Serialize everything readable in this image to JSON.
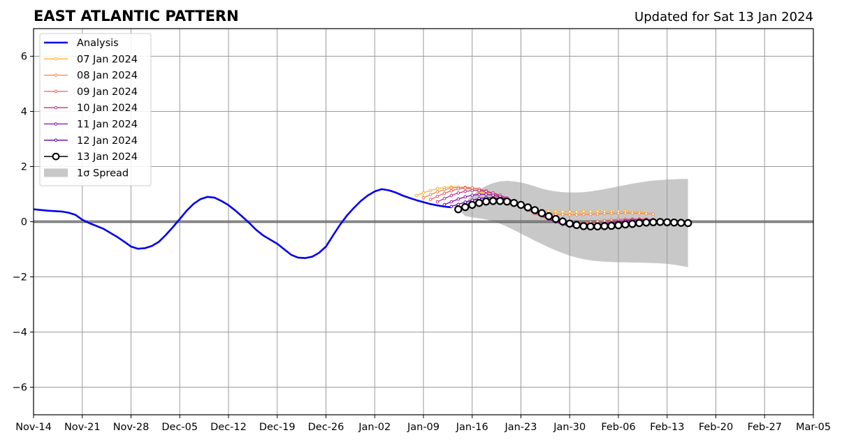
{
  "chart_data": {
    "type": "line",
    "title": "EAST ATLANTIC PATTERN",
    "subtitle": "Updated for Sat 13 Jan 2024",
    "x_axis": {
      "min_date": "2023-11-14",
      "max_date": "2024-03-05",
      "tick_dates": [
        "2023-11-14",
        "2023-11-21",
        "2023-11-28",
        "2023-12-05",
        "2023-12-12",
        "2023-12-19",
        "2023-12-26",
        "2024-01-02",
        "2024-01-09",
        "2024-01-16",
        "2024-01-23",
        "2024-01-30",
        "2024-02-06",
        "2024-02-13",
        "2024-02-20",
        "2024-02-27",
        "2024-03-05"
      ],
      "tick_labels": [
        "Nov-14",
        "Nov-21",
        "Nov-28",
        "Dec-05",
        "Dec-12",
        "Dec-19",
        "Dec-26",
        "Jan-02",
        "Jan-09",
        "Jan-16",
        "Jan-23",
        "Jan-30",
        "Feb-06",
        "Feb-13",
        "Feb-20",
        "Feb-27",
        "Mar-05"
      ]
    },
    "y_axis": {
      "ylim": [
        -7,
        7
      ],
      "ticks": [
        6,
        4,
        2,
        0,
        -2,
        -4,
        -6
      ],
      "tick_labels": [
        "6",
        "4",
        "2",
        "0",
        "−2",
        "−4",
        "−6"
      ]
    },
    "grid": true,
    "zero_line": true,
    "legend_placement": "upper-left",
    "analysis": {
      "name": "Analysis",
      "color": "#0000ee",
      "points": [
        [
          "2023-11-14",
          0.45
        ],
        [
          "2023-11-16",
          0.4
        ],
        [
          "2023-11-18",
          0.37
        ],
        [
          "2023-11-19",
          0.33
        ],
        [
          "2023-11-20",
          0.25
        ],
        [
          "2023-11-21",
          0.07
        ],
        [
          "2023-11-22",
          -0.05
        ],
        [
          "2023-11-24",
          -0.25
        ],
        [
          "2023-11-26",
          -0.55
        ],
        [
          "2023-11-27",
          -0.72
        ],
        [
          "2023-11-28",
          -0.9
        ],
        [
          "2023-11-29",
          -0.98
        ],
        [
          "2023-11-30",
          -0.96
        ],
        [
          "2023-12-01",
          -0.88
        ],
        [
          "2023-12-02",
          -0.73
        ],
        [
          "2023-12-03",
          -0.48
        ],
        [
          "2023-12-04",
          -0.2
        ],
        [
          "2023-12-05",
          0.1
        ],
        [
          "2023-12-06",
          0.4
        ],
        [
          "2023-12-07",
          0.65
        ],
        [
          "2023-12-08",
          0.82
        ],
        [
          "2023-12-09",
          0.9
        ],
        [
          "2023-12-10",
          0.87
        ],
        [
          "2023-12-11",
          0.75
        ],
        [
          "2023-12-12",
          0.6
        ],
        [
          "2023-12-13",
          0.4
        ],
        [
          "2023-12-14",
          0.18
        ],
        [
          "2023-12-15",
          -0.05
        ],
        [
          "2023-12-16",
          -0.3
        ],
        [
          "2023-12-17",
          -0.5
        ],
        [
          "2023-12-18",
          -0.65
        ],
        [
          "2023-12-19",
          -0.8
        ],
        [
          "2023-12-20",
          -1.0
        ],
        [
          "2023-12-21",
          -1.2
        ],
        [
          "2023-12-22",
          -1.3
        ],
        [
          "2023-12-23",
          -1.32
        ],
        [
          "2023-12-24",
          -1.27
        ],
        [
          "2023-12-25",
          -1.13
        ],
        [
          "2023-12-26",
          -0.9
        ],
        [
          "2023-12-27",
          -0.5
        ],
        [
          "2023-12-28",
          -0.12
        ],
        [
          "2023-12-29",
          0.22
        ],
        [
          "2023-12-30",
          0.5
        ],
        [
          "2023-12-31",
          0.75
        ],
        [
          "2024-01-01",
          0.95
        ],
        [
          "2024-01-02",
          1.1
        ],
        [
          "2024-01-03",
          1.18
        ],
        [
          "2024-01-04",
          1.14
        ],
        [
          "2024-01-05",
          1.06
        ],
        [
          "2024-01-06",
          0.95
        ],
        [
          "2024-01-07",
          0.86
        ],
        [
          "2024-01-08",
          0.78
        ],
        [
          "2024-01-09",
          0.71
        ],
        [
          "2024-01-10",
          0.64
        ],
        [
          "2024-01-11",
          0.59
        ],
        [
          "2024-01-12",
          0.55
        ],
        [
          "2024-01-13",
          0.52
        ]
      ]
    },
    "forecasts": [
      {
        "name": "07 Jan 2024",
        "color": "#fdb42f",
        "start": "2024-01-08",
        "values": [
          0.95,
          1.05,
          1.13,
          1.2,
          1.24,
          1.26,
          1.25,
          1.22,
          1.17,
          1.1,
          1.02,
          0.93,
          0.83,
          0.73,
          0.63,
          0.55,
          0.48,
          0.43,
          0.4,
          0.38,
          0.37,
          0.36,
          0.36,
          0.36,
          0.37,
          0.37,
          0.37,
          0.37,
          0.37,
          0.37,
          0.37,
          0.36,
          0.35,
          0.34
        ]
      },
      {
        "name": "08 Jan 2024",
        "color": "#f48849",
        "start": "2024-01-09",
        "values": [
          0.87,
          0.98,
          1.08,
          1.16,
          1.22,
          1.25,
          1.25,
          1.22,
          1.16,
          1.08,
          0.98,
          0.88,
          0.77,
          0.66,
          0.56,
          0.47,
          0.39,
          0.34,
          0.3,
          0.27,
          0.26,
          0.25,
          0.25,
          0.26,
          0.27,
          0.28,
          0.29,
          0.3,
          0.3,
          0.31,
          0.31,
          0.3,
          0.29,
          0.28
        ]
      },
      {
        "name": "09 Jan 2024",
        "color": "#e16462",
        "start": "2024-01-10",
        "values": [
          0.8,
          0.92,
          1.03,
          1.12,
          1.19,
          1.22,
          1.22,
          1.19,
          1.12,
          1.03,
          0.92,
          0.8,
          0.67,
          0.54,
          0.41,
          0.29,
          0.18,
          0.09,
          0.02,
          -0.03,
          -0.05,
          -0.05,
          -0.04,
          -0.02,
          0.01,
          0.04,
          0.06,
          0.08,
          0.09,
          0.1,
          0.1,
          0.1
        ]
      },
      {
        "name": "10 Jan 2024",
        "color": "#b83289",
        "start": "2024-01-11",
        "values": [
          0.72,
          0.84,
          0.95,
          1.04,
          1.1,
          1.13,
          1.13,
          1.1,
          1.04,
          0.96,
          0.86,
          0.74,
          0.61,
          0.48,
          0.35,
          0.22,
          0.1,
          0.0,
          -0.08,
          -0.13,
          -0.15,
          -0.15,
          -0.13,
          -0.1,
          -0.06,
          -0.02,
          0.02,
          0.05,
          0.07,
          0.08,
          0.08,
          0.08
        ]
      },
      {
        "name": "11 Jan 2024",
        "color": "#8b0aa5",
        "start": "2024-01-12",
        "values": [
          0.62,
          0.72,
          0.82,
          0.9,
          0.96,
          0.99,
          0.99,
          0.96,
          0.9,
          0.82,
          0.72,
          0.6,
          0.48,
          0.35,
          0.22,
          0.1,
          -0.01,
          -0.1,
          -0.16,
          -0.19,
          -0.19,
          -0.17,
          -0.14,
          -0.1,
          -0.05,
          -0.01,
          0.02,
          0.04,
          0.05,
          0.05
        ]
      },
      {
        "name": "12 Jan 2024",
        "color": "#5c01a6",
        "start": "2024-01-13",
        "values": [
          0.55,
          0.63,
          0.71,
          0.78,
          0.84,
          0.87,
          0.87,
          0.84,
          0.79,
          0.72,
          0.63,
          0.53,
          0.42,
          0.31,
          0.19,
          0.08,
          -0.02,
          -0.1,
          -0.16,
          -0.19,
          -0.2,
          -0.19,
          -0.17,
          -0.14,
          -0.1,
          -0.06,
          -0.03,
          -0.01,
          0.0,
          0.0
        ]
      },
      {
        "name": "13 Jan 2024",
        "color": "#000000",
        "start": "2024-01-14",
        "values": [
          0.45,
          0.53,
          0.61,
          0.68,
          0.73,
          0.75,
          0.75,
          0.73,
          0.68,
          0.61,
          0.52,
          0.42,
          0.31,
          0.2,
          0.1,
          0.01,
          -0.07,
          -0.12,
          -0.16,
          -0.17,
          -0.17,
          -0.16,
          -0.15,
          -0.13,
          -0.1,
          -0.08,
          -0.05,
          -0.03,
          -0.02,
          -0.01,
          -0.02,
          -0.03,
          -0.04,
          -0.05
        ]
      }
    ],
    "spread": {
      "name": "1σ Spread",
      "color": "#c8c8c8",
      "start": "2024-01-14",
      "upper": [
        0.45,
        0.7,
        0.95,
        1.15,
        1.3,
        1.4,
        1.46,
        1.48,
        1.46,
        1.42,
        1.36,
        1.28,
        1.2,
        1.14,
        1.1,
        1.07,
        1.06,
        1.06,
        1.07,
        1.1,
        1.14,
        1.18,
        1.23,
        1.28,
        1.33,
        1.38,
        1.42,
        1.46,
        1.49,
        1.51,
        1.53,
        1.54,
        1.55,
        1.55
      ],
      "lower": [
        0.45,
        0.2,
        0.16,
        0.12,
        0.08,
        0.02,
        -0.07,
        -0.18,
        -0.3,
        -0.43,
        -0.56,
        -0.69,
        -0.81,
        -0.93,
        -1.04,
        -1.14,
        -1.23,
        -1.3,
        -1.36,
        -1.4,
        -1.43,
        -1.45,
        -1.46,
        -1.47,
        -1.47,
        -1.48,
        -1.48,
        -1.49,
        -1.5,
        -1.51,
        -1.53,
        -1.56,
        -1.6,
        -1.65
      ]
    }
  }
}
